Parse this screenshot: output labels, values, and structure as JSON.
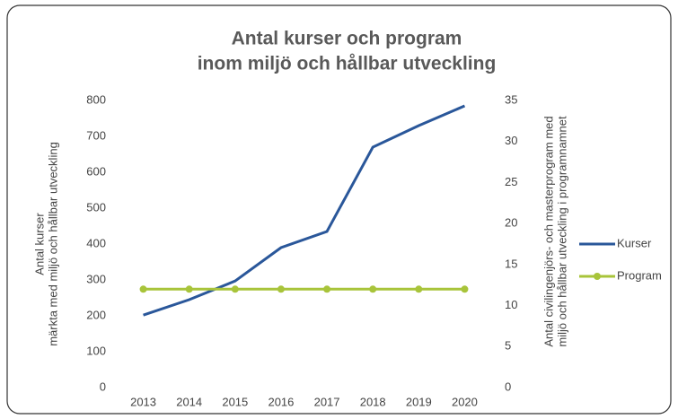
{
  "chart_data": {
    "type": "line",
    "title": [
      "Antal kurser och program",
      "inom miljö och hållbar utveckling"
    ],
    "y_label": [
      "Antal kurser",
      "märkta med miljö och hållbar utveckling"
    ],
    "y2_label": [
      "Antal civilingenjörs- och masterprogram med",
      "miljö och hållbar utveckling i programnamnet"
    ],
    "categories": [
      "2013",
      "2014",
      "2015",
      "2016",
      "2017",
      "2018",
      "2019",
      "2020"
    ],
    "series": [
      {
        "name": "Kurser",
        "color": "#2a579a",
        "values": [
          202,
          245,
          297,
          390,
          435,
          670,
          730,
          785
        ]
      },
      {
        "name": "Program",
        "color": "#a8c43a",
        "axis": "y2",
        "values": [
          12,
          12,
          12,
          12,
          12,
          12,
          12,
          12
        ]
      }
    ],
    "ylim": [
      0,
      800
    ],
    "yticks": [
      0,
      100,
      200,
      300,
      400,
      500,
      600,
      700,
      800
    ],
    "y2lim": [
      0,
      35
    ],
    "y2ticks": [
      0,
      5,
      10,
      15,
      20,
      25,
      30,
      35
    ],
    "legend": "right"
  }
}
